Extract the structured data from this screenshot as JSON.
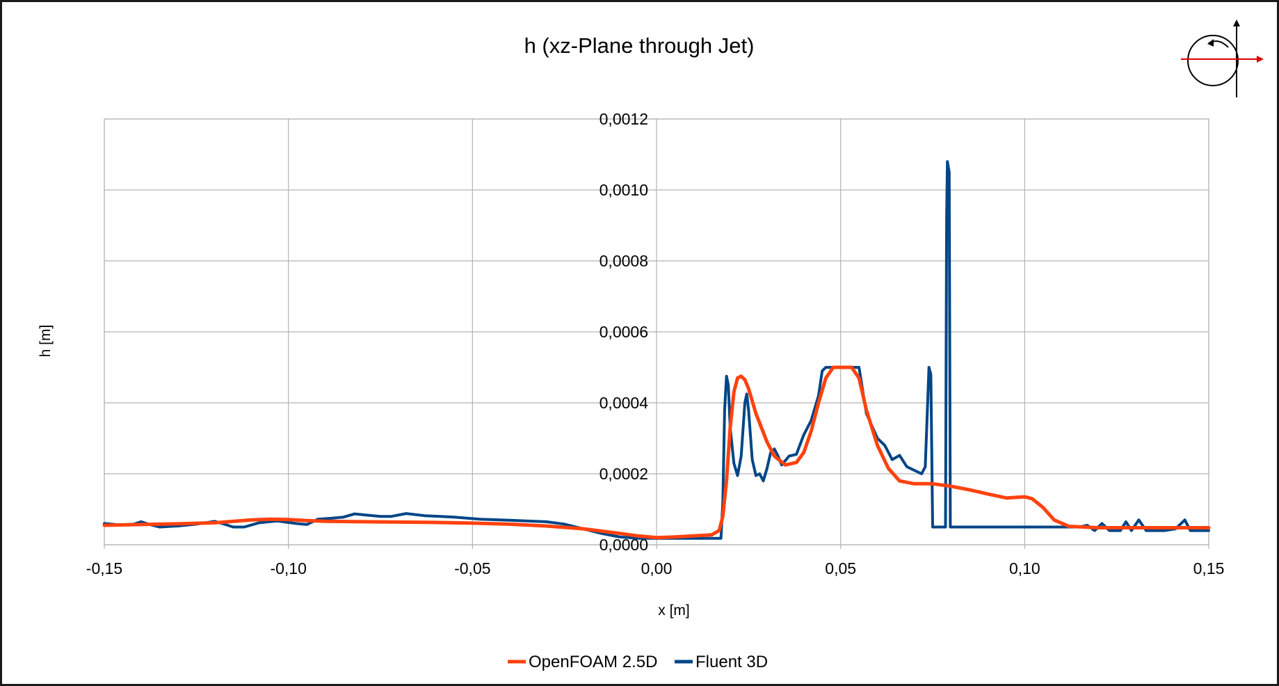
{
  "chart_data": {
    "type": "line",
    "title": "h (xz-Plane through Jet)",
    "xlabel": "x [m]",
    "ylabel": "h [m]",
    "xlim": [
      -0.15,
      0.15
    ],
    "ylim": [
      0,
      0.0012
    ],
    "x_tick_labels": [
      "-0,15",
      "-0,10",
      "-0,05",
      "0,00",
      "0,05",
      "0,10",
      "0,15"
    ],
    "y_tick_labels": [
      "0,0000",
      "0,0002",
      "0,0004",
      "0,0006",
      "0,0008",
      "0,0010",
      "0,0012"
    ],
    "x_ticks": [
      -0.15,
      -0.1,
      -0.05,
      0.0,
      0.05,
      0.1,
      0.15
    ],
    "y_ticks": [
      0,
      0.0002,
      0.0004,
      0.0006,
      0.0008,
      0.001,
      0.0012
    ],
    "grid": true,
    "legend_position": "bottom",
    "series": [
      {
        "name": "OpenFOAM 2.5D",
        "color": "#ff420e",
        "points": [
          [
            -0.15,
            5.5e-05
          ],
          [
            -0.14,
            5.7e-05
          ],
          [
            -0.13,
            5.9e-05
          ],
          [
            -0.12,
            6.2e-05
          ],
          [
            -0.11,
            7e-05
          ],
          [
            -0.105,
            7.2e-05
          ],
          [
            -0.1,
            7.1e-05
          ],
          [
            -0.095,
            6.8e-05
          ],
          [
            -0.09,
            6.6e-05
          ],
          [
            -0.08,
            6.5e-05
          ],
          [
            -0.07,
            6.4e-05
          ],
          [
            -0.06,
            6.3e-05
          ],
          [
            -0.05,
            6.1e-05
          ],
          [
            -0.04,
            5.8e-05
          ],
          [
            -0.03,
            5.3e-05
          ],
          [
            -0.02,
            4.5e-05
          ],
          [
            -0.01,
            3.2e-05
          ],
          [
            -0.005,
            2.5e-05
          ],
          [
            0.0,
            2e-05
          ],
          [
            0.005,
            2.2e-05
          ],
          [
            0.01,
            2.5e-05
          ],
          [
            0.015,
            2.8e-05
          ],
          [
            0.017,
            4e-05
          ],
          [
            0.018,
            8e-05
          ],
          [
            0.019,
            0.00018
          ],
          [
            0.02,
            0.00033
          ],
          [
            0.021,
            0.00043
          ],
          [
            0.022,
            0.00047
          ],
          [
            0.023,
            0.000475
          ],
          [
            0.024,
            0.000465
          ],
          [
            0.025,
            0.00044
          ],
          [
            0.027,
            0.00037
          ],
          [
            0.03,
            0.00029
          ],
          [
            0.032,
            0.00025
          ],
          [
            0.035,
            0.000225
          ],
          [
            0.038,
            0.000232
          ],
          [
            0.04,
            0.00026
          ],
          [
            0.042,
            0.00032
          ],
          [
            0.044,
            0.0004
          ],
          [
            0.046,
            0.00047
          ],
          [
            0.048,
            0.0005
          ],
          [
            0.05,
            0.0005
          ],
          [
            0.053,
            0.0005
          ],
          [
            0.055,
            0.00047
          ],
          [
            0.057,
            0.00038
          ],
          [
            0.06,
            0.00028
          ],
          [
            0.063,
            0.000215
          ],
          [
            0.066,
            0.00018
          ],
          [
            0.07,
            0.000172
          ],
          [
            0.075,
            0.000172
          ],
          [
            0.08,
            0.000165
          ],
          [
            0.085,
            0.000155
          ],
          [
            0.09,
            0.000143
          ],
          [
            0.095,
            0.000132
          ],
          [
            0.1,
            0.000135
          ],
          [
            0.102,
            0.00013
          ],
          [
            0.105,
            0.000105
          ],
          [
            0.108,
            7e-05
          ],
          [
            0.112,
            5.2e-05
          ],
          [
            0.12,
            4.8e-05
          ],
          [
            0.13,
            4.8e-05
          ],
          [
            0.14,
            4.8e-05
          ],
          [
            0.15,
            4.8e-05
          ]
        ]
      },
      {
        "name": "Fluent 3D",
        "color": "#004586",
        "points": [
          [
            -0.15,
            6e-05
          ],
          [
            -0.146,
            5.6e-05
          ],
          [
            -0.142,
            5.8e-05
          ],
          [
            -0.14,
            6.5e-05
          ],
          [
            -0.138,
            5.8e-05
          ],
          [
            -0.135,
            5e-05
          ],
          [
            -0.13,
            5.3e-05
          ],
          [
            -0.125,
            5.8e-05
          ],
          [
            -0.12,
            6.6e-05
          ],
          [
            -0.118,
            6e-05
          ],
          [
            -0.115,
            5e-05
          ],
          [
            -0.112,
            5e-05
          ],
          [
            -0.108,
            6.2e-05
          ],
          [
            -0.103,
            6.7e-05
          ],
          [
            -0.098,
            6e-05
          ],
          [
            -0.095,
            5.7e-05
          ],
          [
            -0.092,
            7.2e-05
          ],
          [
            -0.088,
            7.5e-05
          ],
          [
            -0.085,
            7.8e-05
          ],
          [
            -0.082,
            8.7e-05
          ],
          [
            -0.078,
            8.3e-05
          ],
          [
            -0.075,
            8e-05
          ],
          [
            -0.072,
            8e-05
          ],
          [
            -0.068,
            8.8e-05
          ],
          [
            -0.063,
            8.2e-05
          ],
          [
            -0.055,
            7.8e-05
          ],
          [
            -0.048,
            7.2e-05
          ],
          [
            -0.04,
            6.9e-05
          ],
          [
            -0.03,
            6.5e-05
          ],
          [
            -0.025,
            5.8e-05
          ],
          [
            -0.02,
            4.5e-05
          ],
          [
            -0.015,
            3.2e-05
          ],
          [
            -0.01,
            2.2e-05
          ],
          [
            -0.005,
            1.8e-05
          ],
          [
            0.0,
            1.8e-05
          ],
          [
            0.005,
            1.8e-05
          ],
          [
            0.01,
            1.8e-05
          ],
          [
            0.015,
            1.8e-05
          ],
          [
            0.0175,
            1.8e-05
          ],
          [
            0.018,
            0.00012
          ],
          [
            0.0185,
            0.00038
          ],
          [
            0.019,
            0.000475
          ],
          [
            0.0195,
            0.00045
          ],
          [
            0.02,
            0.00033
          ],
          [
            0.021,
            0.00023
          ],
          [
            0.022,
            0.000195
          ],
          [
            0.023,
            0.00025
          ],
          [
            0.024,
            0.0004
          ],
          [
            0.0245,
            0.000425
          ],
          [
            0.025,
            0.00038
          ],
          [
            0.026,
            0.00024
          ],
          [
            0.027,
            0.000195
          ],
          [
            0.028,
            0.0002
          ],
          [
            0.029,
            0.00018
          ],
          [
            0.03,
            0.000215
          ],
          [
            0.031,
            0.00026
          ],
          [
            0.032,
            0.00027
          ],
          [
            0.033,
            0.00025
          ],
          [
            0.034,
            0.000225
          ],
          [
            0.036,
            0.00025
          ],
          [
            0.038,
            0.000255
          ],
          [
            0.04,
            0.00031
          ],
          [
            0.042,
            0.00035
          ],
          [
            0.044,
            0.00042
          ],
          [
            0.045,
            0.00049
          ],
          [
            0.046,
            0.0005
          ],
          [
            0.048,
            0.0005
          ],
          [
            0.052,
            0.0005
          ],
          [
            0.055,
            0.0005
          ],
          [
            0.057,
            0.00037
          ],
          [
            0.06,
            0.0003
          ],
          [
            0.062,
            0.00028
          ],
          [
            0.064,
            0.00024
          ],
          [
            0.066,
            0.000252
          ],
          [
            0.068,
            0.00022
          ],
          [
            0.07,
            0.00021
          ],
          [
            0.072,
            0.0002
          ],
          [
            0.073,
            0.00022
          ],
          [
            0.074,
            0.0005
          ],
          [
            0.0745,
            0.00048
          ],
          [
            0.075,
            5e-05
          ],
          [
            0.078,
            5e-05
          ],
          [
            0.0785,
            5e-05
          ],
          [
            0.0788,
            0.00092
          ],
          [
            0.079,
            0.00108
          ],
          [
            0.0795,
            0.00105
          ],
          [
            0.0798,
            5e-05
          ],
          [
            0.09,
            5e-05
          ],
          [
            0.1,
            5e-05
          ],
          [
            0.11,
            5e-05
          ],
          [
            0.115,
            5e-05
          ],
          [
            0.117,
            5.5e-05
          ],
          [
            0.119,
            4e-05
          ],
          [
            0.121,
            6e-05
          ],
          [
            0.123,
            4e-05
          ],
          [
            0.126,
            4e-05
          ],
          [
            0.1275,
            6.5e-05
          ],
          [
            0.129,
            4e-05
          ],
          [
            0.131,
            7e-05
          ],
          [
            0.133,
            4e-05
          ],
          [
            0.138,
            4e-05
          ],
          [
            0.141,
            4.5e-05
          ],
          [
            0.1435,
            7e-05
          ],
          [
            0.145,
            4e-05
          ],
          [
            0.15,
            4e-05
          ]
        ]
      }
    ]
  }
}
